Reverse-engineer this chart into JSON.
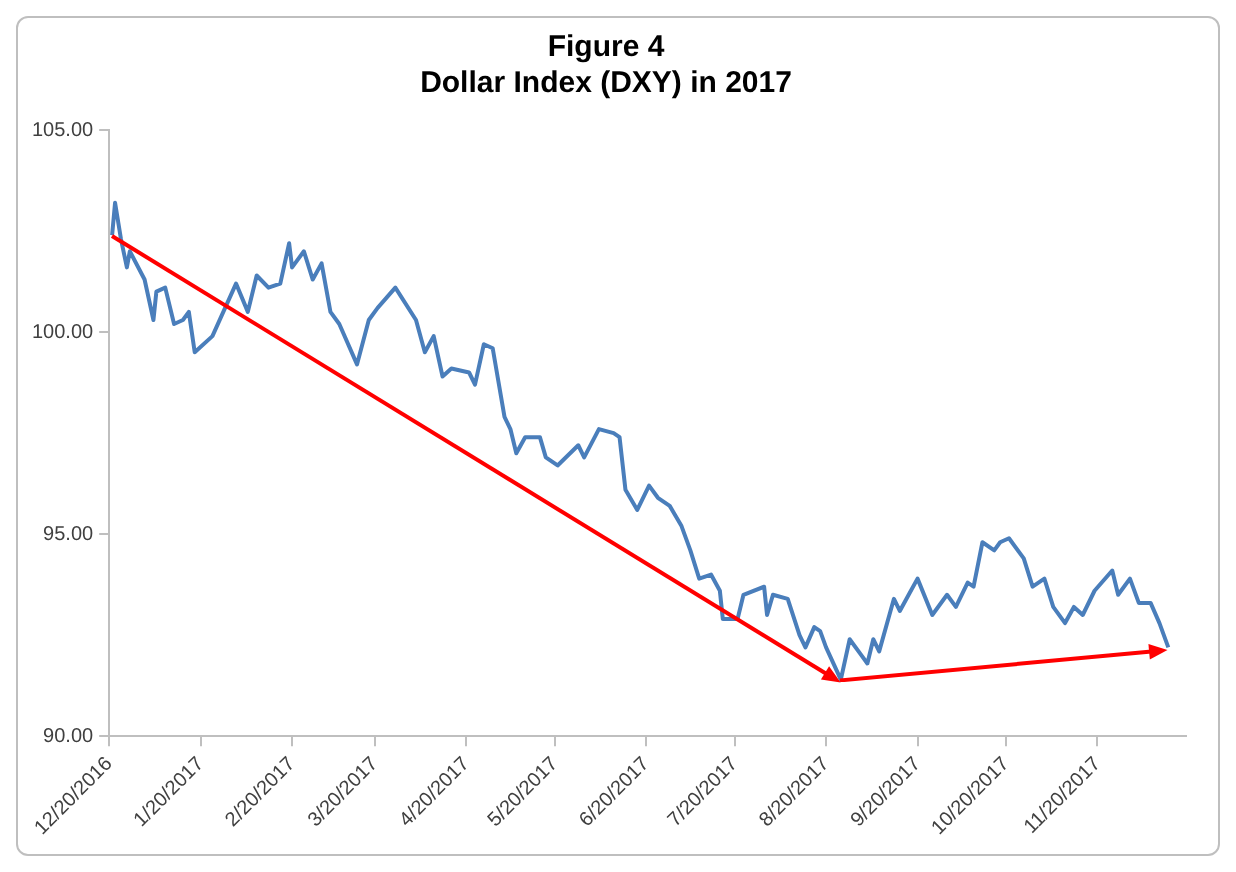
{
  "chart_data": {
    "type": "line",
    "title": "Figure 4",
    "subtitle": "Dollar Index (DXY) in 2017",
    "x": [
      "2016-12-21",
      "2016-12-22",
      "2016-12-24",
      "2016-12-26",
      "2016-12-27",
      "2017-01-01",
      "2017-01-04",
      "2017-01-05",
      "2017-01-08",
      "2017-01-11",
      "2017-01-14",
      "2017-01-16",
      "2017-01-18",
      "2017-01-24",
      "2017-02-01",
      "2017-02-05",
      "2017-02-08",
      "2017-02-12",
      "2017-02-16",
      "2017-02-19",
      "2017-02-20",
      "2017-02-24",
      "2017-02-27",
      "2017-03-02",
      "2017-03-05",
      "2017-03-08",
      "2017-03-14",
      "2017-03-18",
      "2017-03-21",
      "2017-03-27",
      "2017-04-03",
      "2017-04-06",
      "2017-04-09",
      "2017-04-12",
      "2017-04-15",
      "2017-04-21",
      "2017-04-23",
      "2017-04-26",
      "2017-04-29",
      "2017-05-03",
      "2017-05-05",
      "2017-05-07",
      "2017-05-10",
      "2017-05-15",
      "2017-05-17",
      "2017-05-21",
      "2017-05-28",
      "2017-05-30",
      "2017-06-04",
      "2017-06-09",
      "2017-06-11",
      "2017-06-13",
      "2017-06-17",
      "2017-06-21",
      "2017-06-24",
      "2017-06-28",
      "2017-07-02",
      "2017-07-05",
      "2017-07-08",
      "2017-07-12",
      "2017-07-15",
      "2017-07-16",
      "2017-07-21",
      "2017-07-23",
      "2017-07-30",
      "2017-07-31",
      "2017-08-02",
      "2017-08-07",
      "2017-08-11",
      "2017-08-13",
      "2017-08-16",
      "2017-08-18",
      "2017-08-20",
      "2017-08-25",
      "2017-08-28",
      "2017-09-01",
      "2017-09-03",
      "2017-09-05",
      "2017-09-07",
      "2017-09-12",
      "2017-09-14",
      "2017-09-17",
      "2017-09-20",
      "2017-09-25",
      "2017-09-30",
      "2017-10-03",
      "2017-10-07",
      "2017-10-09",
      "2017-10-12",
      "2017-10-16",
      "2017-10-18",
      "2017-10-21",
      "2017-10-26",
      "2017-10-29",
      "2017-11-02",
      "2017-11-05",
      "2017-11-09",
      "2017-11-12",
      "2017-11-15",
      "2017-11-19",
      "2017-11-25",
      "2017-11-27",
      "2017-12-01",
      "2017-12-04",
      "2017-12-08",
      "2017-12-11",
      "2017-12-14"
    ],
    "series": [
      {
        "color": "#4a7ebb",
        "values": [
          102.4,
          103.2,
          102.3,
          101.6,
          102.0,
          101.3,
          100.3,
          101.0,
          101.1,
          100.2,
          100.3,
          100.5,
          99.5,
          99.9,
          101.2,
          100.5,
          101.4,
          101.1,
          101.2,
          102.2,
          101.6,
          102.0,
          101.3,
          101.7,
          100.5,
          100.2,
          99.2,
          100.3,
          100.6,
          101.1,
          100.3,
          99.5,
          99.9,
          98.9,
          99.1,
          99.0,
          98.7,
          99.7,
          99.6,
          97.9,
          97.6,
          97.0,
          97.4,
          97.4,
          96.9,
          96.7,
          97.2,
          96.9,
          97.6,
          97.5,
          97.4,
          96.1,
          95.6,
          96.2,
          95.9,
          95.7,
          95.2,
          94.6,
          93.9,
          94.0,
          93.6,
          92.9,
          92.9,
          93.5,
          93.7,
          93.0,
          93.5,
          93.4,
          92.5,
          92.2,
          92.7,
          92.6,
          92.2,
          91.4,
          92.4,
          92.0,
          91.8,
          92.4,
          92.1,
          93.4,
          93.1,
          93.5,
          93.9,
          93.0,
          93.5,
          93.2,
          93.8,
          93.7,
          94.8,
          94.6,
          94.8,
          94.9,
          94.4,
          93.7,
          93.9,
          93.2,
          92.8,
          93.2,
          93.0,
          93.6,
          94.1,
          93.5,
          93.9,
          93.3,
          93.3,
          92.8,
          92.2
        ]
      }
    ],
    "xlim": [
      "2016-12-20",
      "2017-12-20"
    ],
    "xticks": [
      {
        "value": "2016-12-20",
        "label": "12/20/2016"
      },
      {
        "value": "2017-01-20",
        "label": "1/20/2017"
      },
      {
        "value": "2017-02-20",
        "label": "2/20/2017"
      },
      {
        "value": "2017-03-20",
        "label": "3/20/2017"
      },
      {
        "value": "2017-04-20",
        "label": "4/20/2017"
      },
      {
        "value": "2017-05-20",
        "label": "5/20/2017"
      },
      {
        "value": "2017-06-20",
        "label": "6/20/2017"
      },
      {
        "value": "2017-07-20",
        "label": "7/20/2017"
      },
      {
        "value": "2017-08-20",
        "label": "8/20/2017"
      },
      {
        "value": "2017-09-20",
        "label": "9/20/2017"
      },
      {
        "value": "2017-10-20",
        "label": "10/20/2017"
      },
      {
        "value": "2017-11-20",
        "label": "11/20/2017"
      }
    ],
    "ylim": [
      90,
      105
    ],
    "yticks": [
      {
        "value": 90,
        "label": "90.00"
      },
      {
        "value": 95,
        "label": "95.00"
      },
      {
        "value": 100,
        "label": "100.00"
      },
      {
        "value": 105,
        "label": "105.00"
      }
    ],
    "grid": false,
    "legend": false,
    "marker": "none",
    "line_style": "solid"
  }
}
